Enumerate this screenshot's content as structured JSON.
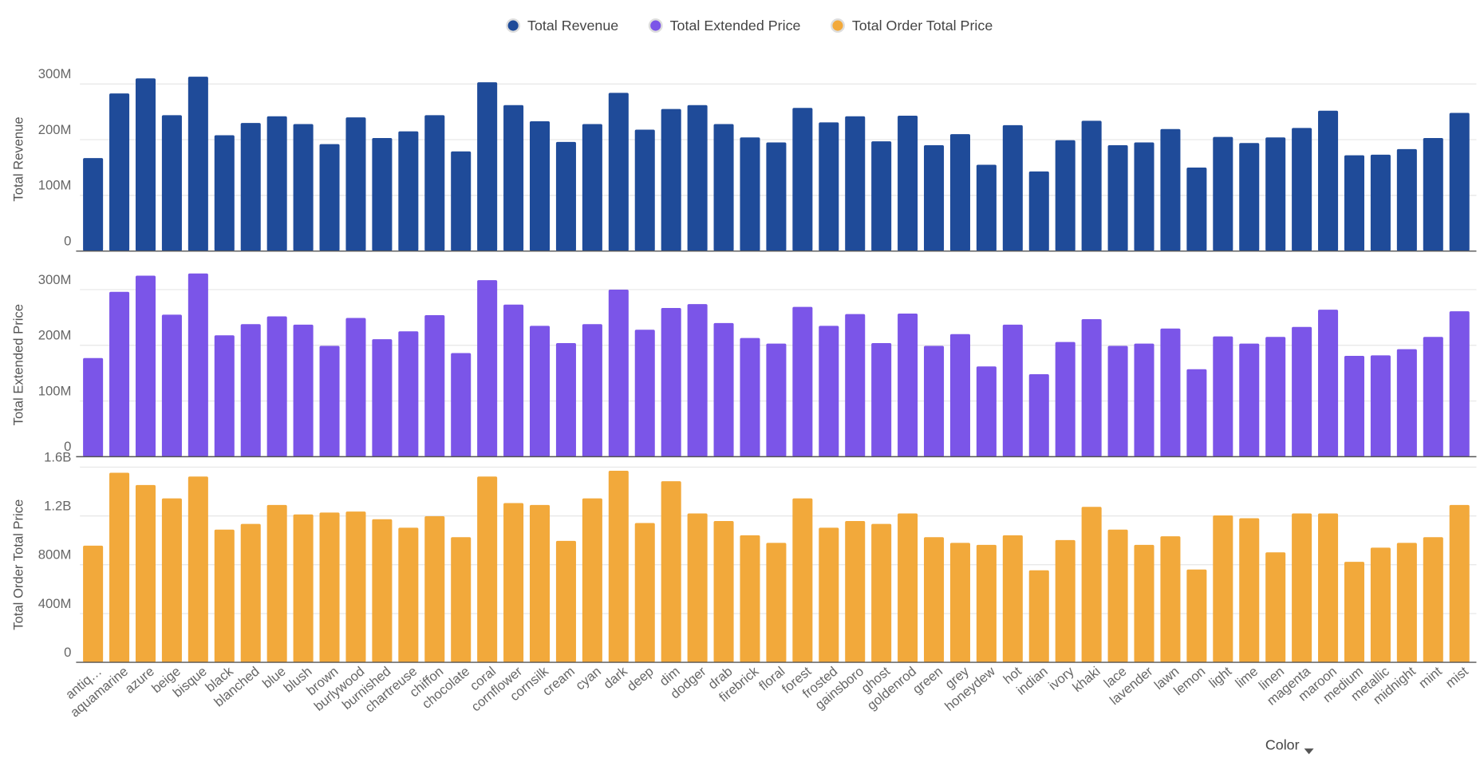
{
  "chart_data": {
    "type": "bar",
    "x_label": "Color",
    "categories": [
      "antiq…",
      "aquamarine",
      "azure",
      "beige",
      "bisque",
      "black",
      "blanched",
      "blue",
      "blush",
      "brown",
      "burlywood",
      "burnished",
      "chartreuse",
      "chiffon",
      "chocolate",
      "coral",
      "cornflower",
      "cornsilk",
      "cream",
      "cyan",
      "dark",
      "deep",
      "dim",
      "dodger",
      "drab",
      "firebrick",
      "floral",
      "forest",
      "frosted",
      "gainsboro",
      "ghost",
      "goldenrod",
      "green",
      "grey",
      "honeydew",
      "hot",
      "indian",
      "ivory",
      "khaki",
      "lace",
      "lavender",
      "lawn",
      "lemon",
      "light",
      "lime",
      "linen",
      "magenta",
      "maroon",
      "medium",
      "metallic",
      "midnight",
      "mint",
      "mist"
    ],
    "grid": true,
    "series": [
      {
        "name": "Total Revenue",
        "y_label": "Total Revenue",
        "color": "#1f4b99",
        "ylim": [
          0,
          330000000.0
        ],
        "yticks": [
          0,
          {
            "value": 100000000.0,
            "label": "100M"
          },
          {
            "value": 200000000.0,
            "label": "200M"
          },
          {
            "value": 300000000.0,
            "label": "300M"
          }
        ],
        "values": [
          167000000.0,
          283000000.0,
          310000000.0,
          244000000.0,
          313000000.0,
          208000000.0,
          230000000.0,
          242000000.0,
          228000000.0,
          192000000.0,
          240000000.0,
          203000000.0,
          215000000.0,
          244000000.0,
          179000000.0,
          303000000.0,
          262000000.0,
          233000000.0,
          196000000.0,
          228000000.0,
          284000000.0,
          218000000.0,
          255000000.0,
          262000000.0,
          228000000.0,
          204000000.0,
          195000000.0,
          257000000.0,
          231000000.0,
          242000000.0,
          197000000.0,
          243000000.0,
          190000000.0,
          210000000.0,
          155000000.0,
          226000000.0,
          143000000.0,
          199000000.0,
          234000000.0,
          190000000.0,
          195000000.0,
          219000000.0,
          150000000.0,
          205000000.0,
          194000000.0,
          204000000.0,
          221000000.0,
          252000000.0,
          172000000.0,
          173000000.0,
          183000000.0,
          203000000.0,
          248000000.0
        ]
      },
      {
        "name": "Total Extended Price",
        "y_label": "Total Extended Price",
        "color": "#7b55e8",
        "ylim": [
          0,
          330000000.0
        ],
        "yticks": [
          0,
          {
            "value": 100000000.0,
            "label": "100M"
          },
          {
            "value": 200000000.0,
            "label": "200M"
          },
          {
            "value": 300000000.0,
            "label": "300M"
          }
        ],
        "values": [
          177000000.0,
          296000000.0,
          325000000.0,
          255000000.0,
          329000000.0,
          218000000.0,
          238000000.0,
          252000000.0,
          237000000.0,
          199000000.0,
          249000000.0,
          211000000.0,
          225000000.0,
          254000000.0,
          186000000.0,
          317000000.0,
          273000000.0,
          235000000.0,
          204000000.0,
          238000000.0,
          300000000.0,
          228000000.0,
          267000000.0,
          274000000.0,
          240000000.0,
          213000000.0,
          203000000.0,
          269000000.0,
          235000000.0,
          256000000.0,
          204000000.0,
          257000000.0,
          199000000.0,
          220000000.0,
          162000000.0,
          237000000.0,
          148000000.0,
          206000000.0,
          247000000.0,
          199000000.0,
          203000000.0,
          230000000.0,
          157000000.0,
          216000000.0,
          203000000.0,
          215000000.0,
          233000000.0,
          264000000.0,
          181000000.0,
          182000000.0,
          193000000.0,
          215000000.0,
          261000000.0
        ]
      },
      {
        "name": "Total Order Total Price",
        "y_label": "Total Order Total Price",
        "color": "#f2a93b",
        "ylim": [
          0,
          1600000000.0
        ],
        "yticks": [
          0,
          {
            "value": 400000000.0,
            "label": "400M"
          },
          {
            "value": 800000000.0,
            "label": "800M"
          },
          {
            "value": 1200000000.0,
            "label": "1.2B"
          },
          {
            "value": 1600000000.0,
            "label": "1.6B"
          }
        ],
        "values": [
          956000000.0,
          1554000000.0,
          1453000000.0,
          1344000000.0,
          1523000000.0,
          1088000000.0,
          1134000000.0,
          1290000000.0,
          1212000000.0,
          1228000000.0,
          1236000000.0,
          1173000000.0,
          1103000000.0,
          1197000000.0,
          1026000000.0,
          1523000000.0,
          1305000000.0,
          1290000000.0,
          995000000.0,
          1344000000.0,
          1570000000.0,
          1142000000.0,
          1484000000.0,
          1220000000.0,
          1158000000.0,
          1041000000.0,
          979000000.0,
          1344000000.0,
          1103000000.0,
          1158000000.0,
          1134000000.0,
          1220000000.0,
          1026000000.0,
          979000000.0,
          963000000.0,
          1041000000.0,
          754000000.0,
          1002000000.0,
          1274000000.0,
          1088000000.0,
          963000000.0,
          1033000000.0,
          761000000.0,
          1204000000.0,
          1181000000.0,
          901000000.0,
          1220000000.0,
          1220000000.0,
          824000000.0,
          940000000.0,
          979000000.0,
          1026000000.0,
          1290000000.0
        ]
      }
    ]
  }
}
